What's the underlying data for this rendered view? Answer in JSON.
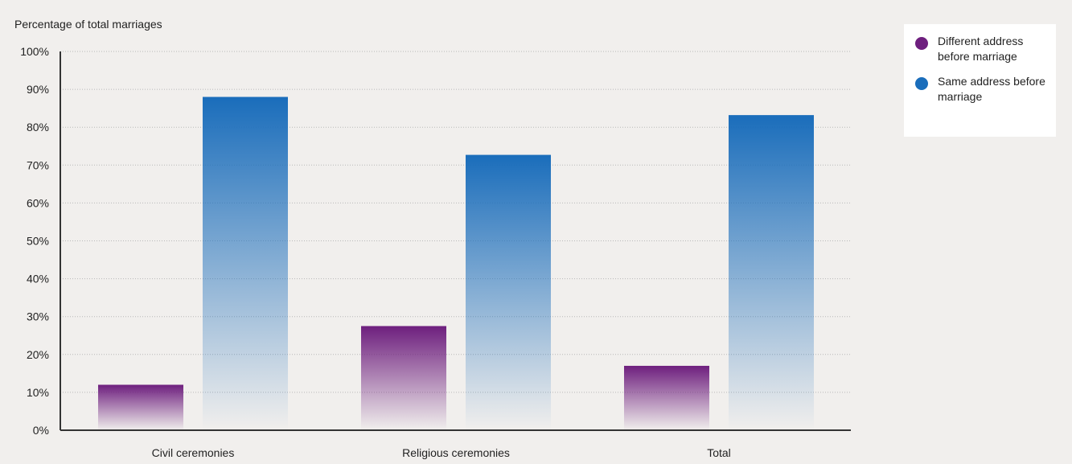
{
  "colors": {
    "background": "#f1efed",
    "different_address": "#6e1f7e",
    "same_address": "#1a6dbb",
    "gridline": "#b8b8b8",
    "axis": "#333333"
  },
  "chart_data": {
    "type": "bar",
    "title": "",
    "xlabel": "",
    "ylabel": "Percentage of total marriages",
    "categories": [
      "Civil ceremonies",
      "Religious ceremonies",
      "Total"
    ],
    "series": [
      {
        "name": "Different address before marriage",
        "values": [
          12,
          27.5,
          17
        ],
        "color": "#6e1f7e",
        "legend_icon": "circle-icon"
      },
      {
        "name": "Same address before marriage",
        "values": [
          88,
          72.7,
          83.2
        ],
        "color": "#1a6dbb",
        "legend_icon": "circle-icon"
      }
    ],
    "ylim": [
      0,
      100
    ],
    "yticks": [
      "0%",
      "10%",
      "20%",
      "30%",
      "40%",
      "50%",
      "60%",
      "70%",
      "80%",
      "90%",
      "100%"
    ],
    "grid": true,
    "legend_position": "top-right"
  }
}
